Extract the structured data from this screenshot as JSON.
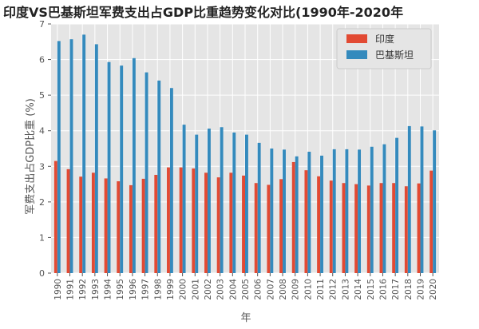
{
  "chart_data": {
    "type": "bar",
    "title": "印度VS巴基斯坦军费支出占GDP比重趋势变化对比(1990年-2020年",
    "xlabel": "年",
    "ylabel": "军费支出占GDP比重 (%)",
    "ylim": [
      0,
      7
    ],
    "yticks": [
      "0",
      "1",
      "2",
      "3",
      "4",
      "5",
      "6",
      "7"
    ],
    "grid": true,
    "legend_position": "top-right",
    "categories": [
      "1990",
      "1991",
      "1992",
      "1993",
      "1994",
      "1995",
      "1996",
      "1997",
      "1998",
      "1999",
      "2000",
      "2001",
      "2002",
      "2003",
      "2004",
      "2005",
      "2006",
      "2007",
      "2008",
      "2009",
      "2010",
      "2011",
      "2012",
      "2013",
      "2014",
      "2015",
      "2016",
      "2017",
      "2018",
      "2019",
      "2020"
    ],
    "series": [
      {
        "name": "印度",
        "color": "#e24a33",
        "values": [
          3.15,
          2.92,
          2.71,
          2.82,
          2.66,
          2.58,
          2.47,
          2.65,
          2.76,
          2.97,
          2.97,
          2.94,
          2.82,
          2.69,
          2.82,
          2.74,
          2.53,
          2.48,
          2.64,
          3.12,
          2.89,
          2.72,
          2.6,
          2.53,
          2.5,
          2.46,
          2.53,
          2.53,
          2.44,
          2.52,
          2.88
        ]
      },
      {
        "name": "巴基斯坦",
        "color": "#348abd",
        "values": [
          6.52,
          6.57,
          6.7,
          6.43,
          5.93,
          5.83,
          6.04,
          5.64,
          5.41,
          5.2,
          4.17,
          3.89,
          4.06,
          4.1,
          3.95,
          3.89,
          3.66,
          3.5,
          3.47,
          3.28,
          3.41,
          3.3,
          3.48,
          3.48,
          3.47,
          3.55,
          3.62,
          3.8,
          4.13,
          4.12,
          4.01
        ]
      }
    ]
  }
}
